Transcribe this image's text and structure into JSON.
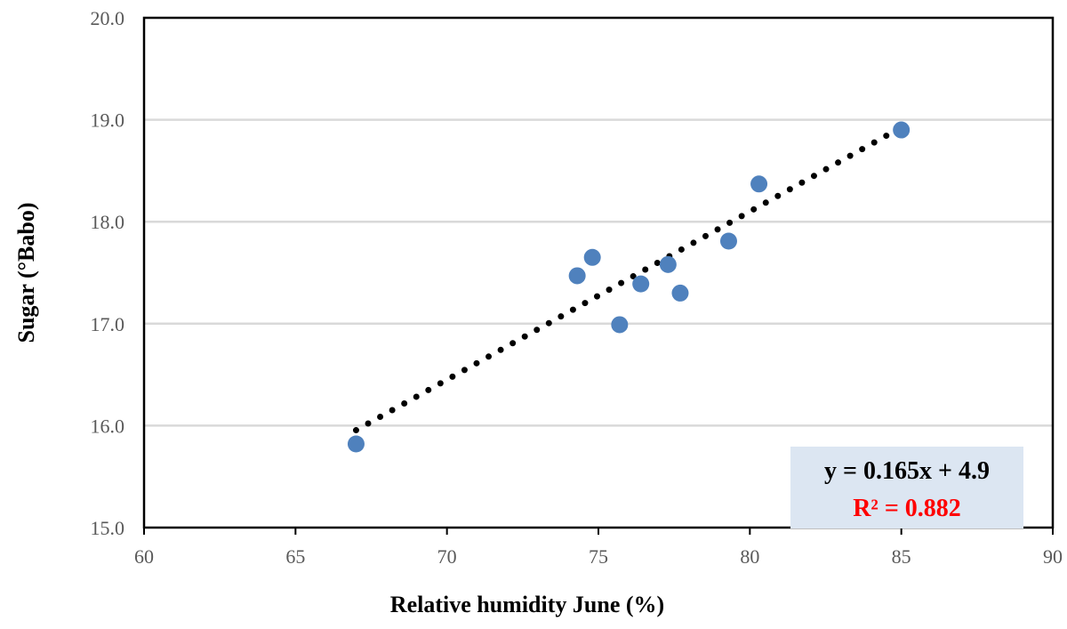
{
  "chart_data": {
    "type": "scatter",
    "title": "",
    "xlabel": "Relative humidity June (%)",
    "ylabel": "Sugar (°Babo)",
    "xlim": [
      60,
      90
    ],
    "ylim": [
      15.0,
      20.0
    ],
    "x_ticks": [
      60,
      65,
      70,
      75,
      80,
      85,
      90
    ],
    "y_ticks": [
      "15.0",
      "16.0",
      "17.0",
      "18.0",
      "19.0",
      "20.0"
    ],
    "grid": "horizontal",
    "series": [
      {
        "points": [
          {
            "x": 67.0,
            "y": 15.82
          },
          {
            "x": 74.3,
            "y": 17.47
          },
          {
            "x": 74.8,
            "y": 17.65
          },
          {
            "x": 75.7,
            "y": 16.99
          },
          {
            "x": 76.4,
            "y": 17.39
          },
          {
            "x": 77.3,
            "y": 17.58
          },
          {
            "x": 77.7,
            "y": 17.3
          },
          {
            "x": 79.3,
            "y": 17.81
          },
          {
            "x": 80.3,
            "y": 18.37
          },
          {
            "x": 85.0,
            "y": 18.9
          }
        ],
        "color": "#4f81bd"
      }
    ],
    "trendline": {
      "type": "linear",
      "slope": 0.165,
      "intercept": 4.9,
      "x_range": [
        67,
        85
      ],
      "style": "dotted",
      "color": "#000000",
      "equation": "y = 0.165x + 4.9",
      "r_squared": "R² = 0.882",
      "r_squared_color": "#ff0000",
      "label_background": "#dce6f2"
    }
  }
}
